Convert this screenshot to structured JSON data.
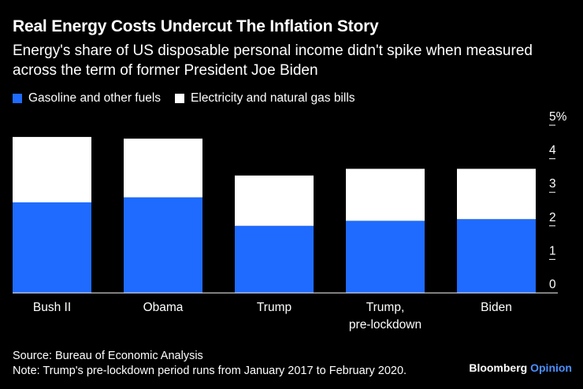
{
  "header": {
    "title": "Real Energy Costs Undercut The Inflation Story",
    "subtitle": "Energy's share of US disposable personal income didn't spike when measured across the term of former President Joe Biden"
  },
  "legend": [
    {
      "label": "Gasoline and other fuels",
      "color": "#1f6bff"
    },
    {
      "label": "Electricity and natural gas bills",
      "color": "#ffffff"
    }
  ],
  "chart_data": {
    "type": "bar",
    "stacked": true,
    "categories": [
      [
        "Bush II"
      ],
      [
        "Obama"
      ],
      [
        "Trump"
      ],
      [
        "Trump,",
        "pre-lockdown"
      ],
      [
        "Biden"
      ]
    ],
    "series": [
      {
        "name": "Gasoline and other fuels",
        "color": "#1f6bff",
        "values": [
          2.7,
          2.85,
          2.0,
          2.15,
          2.2
        ]
      },
      {
        "name": "Electricity and natural gas bills",
        "color": "#ffffff",
        "values": [
          1.95,
          1.75,
          1.5,
          1.55,
          1.5
        ]
      }
    ],
    "yticks": [
      "0",
      "1",
      "2",
      "3",
      "4",
      "5%"
    ],
    "ylim": [
      0,
      5
    ],
    "axis_side": "right"
  },
  "footer": {
    "source": "Source: Bureau of Economic Analysis",
    "note": "Note: Trump's pre-lockdown period runs from January 2017 to February 2020."
  },
  "brand": {
    "name": "Bloomberg",
    "suffix": "Opinion"
  }
}
